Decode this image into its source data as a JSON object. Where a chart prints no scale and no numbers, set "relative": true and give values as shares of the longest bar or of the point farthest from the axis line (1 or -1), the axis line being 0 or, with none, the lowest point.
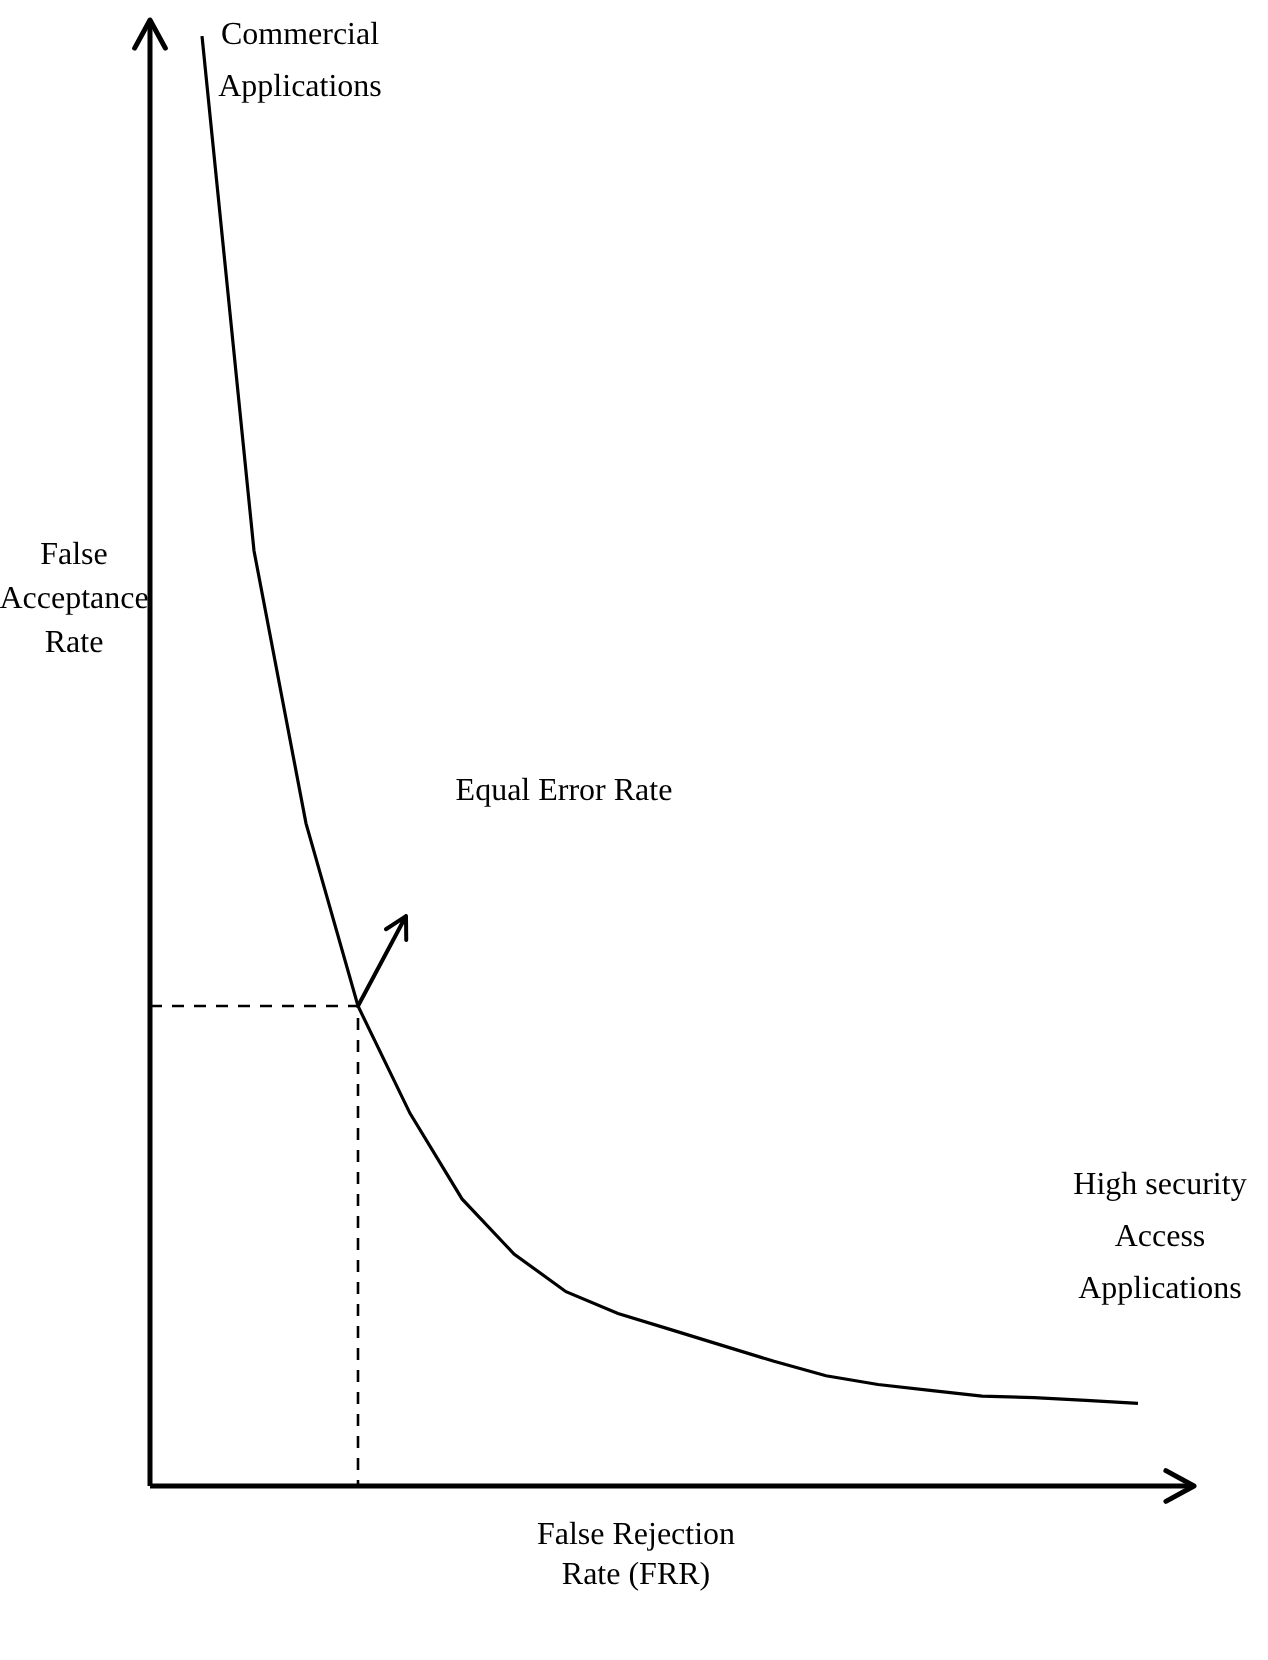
{
  "chart_data": {
    "type": "line",
    "relative": true,
    "xlabel": "False Rejection Rate (FRR)",
    "ylabel": "False Acceptance Rate",
    "legend": false,
    "marker": "none",
    "line_style": "solid",
    "categories": [
      null,
      null,
      null,
      null,
      null,
      null,
      null,
      null,
      null,
      null,
      null,
      null,
      null,
      null,
      null,
      null,
      null,
      null,
      null,
      null,
      null
    ],
    "series": [
      {
        "color": "#000000",
        "values": [
          null,
          1.0,
          0.645,
          0.457,
          0.331,
          0.257,
          0.198,
          0.16,
          0.134,
          0.119,
          0.108,
          0.097,
          0.086,
          0.076,
          0.07,
          0.066,
          0.062,
          0.061,
          0.059,
          0.057,
          null
        ]
      }
    ],
    "ref_lines": [
      {
        "axis": "y",
        "value": 0.331,
        "line_style": "dashed",
        "color": "#000000"
      }
    ],
    "annotations": [
      "Commercial Applications",
      "Equal Error Rate",
      "High security Access Applications"
    ]
  }
}
